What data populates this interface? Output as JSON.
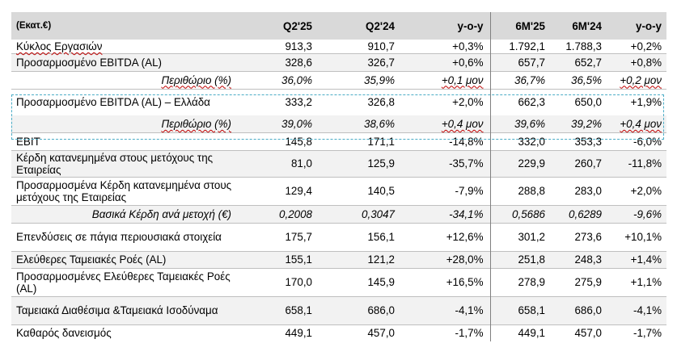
{
  "header": {
    "label": "(Εκατ.€)",
    "cols": [
      "Q2'25",
      "Q2'24",
      "y-o-y",
      "6M'25",
      "6M'24",
      "y-o-y"
    ]
  },
  "rows": [
    {
      "label": "Κύκλος Εργασιών",
      "values": [
        "913,3",
        "910,7",
        "+0,3%",
        "1.792,1",
        "1.788,3",
        "+0,2%"
      ]
    },
    {
      "label": "Προσαρμοσμένο EBITDA (AL)",
      "values": [
        "328,6",
        "326,7",
        "+0,6%",
        "657,7",
        "652,7",
        "+0,8%"
      ]
    },
    {
      "label": "Περιθώριο (%)",
      "values": [
        "36,0%",
        "35,9%",
        "+0,1 μον",
        "36,7%",
        "36,5%",
        "+0,2 μον"
      ]
    },
    {
      "label": "Προσαρμοσμένο EBITDA (AL) – Ελλάδα",
      "values": [
        "333,2",
        "326,8",
        "+2,0%",
        "662,3",
        "650,0",
        "+1,9%"
      ]
    },
    {
      "label": "Περιθώριο (%)",
      "values": [
        "39,0%",
        "38,6%",
        "+0,4 μον",
        "39,6%",
        "39,2%",
        "+0,4 μον"
      ]
    },
    {
      "label": "EBIT",
      "values": [
        "145,8",
        "171,1",
        "-14,8%",
        "332,0",
        "353,3",
        "-6,0%"
      ]
    },
    {
      "label": "Κέρδη κατανεμημένα στους μετόχους της Εταιρείας",
      "values": [
        "81,0",
        "125,9",
        "-35,7%",
        "229,9",
        "260,7",
        "-11,8%"
      ]
    },
    {
      "label": "Προσαρμοσμένα Κέρδη κατανεμημένα στους μετόχους της Εταιρείας",
      "values": [
        "129,4",
        "140,5",
        "-7,9%",
        "288,8",
        "283,0",
        "+2,0%"
      ]
    },
    {
      "label": "Βασικά Κέρδη ανά μετοχή (€)",
      "values": [
        "0,2008",
        "0,3047",
        "-34,1%",
        "0,5686",
        "0,6289",
        "-9,6%"
      ]
    },
    {
      "label": "Επενδύσεις σε πάγια περιουσιακά στοιχεία",
      "values": [
        "175,7",
        "156,1",
        "+12,6%",
        "301,2",
        "273,6",
        "+10,1%"
      ]
    },
    {
      "label": "Ελεύθερες Ταμειακές Ροές (AL)",
      "values": [
        "155,1",
        "121,2",
        "+28,0%",
        "251,8",
        "248,3",
        "+1,4%"
      ]
    },
    {
      "label": "Προσαρμοσμένες Ελεύθερες Ταμειακές Ροές (AL)",
      "values": [
        "170,0",
        "145,9",
        "+16,5%",
        "278,9",
        "275,9",
        "+1,1%"
      ]
    },
    {
      "label": "Ταμειακά Διαθέσιμα &Ταμειακά Ισοδύναμα",
      "values": [
        "658,1",
        "686,0",
        "-4,1%",
        "658,1",
        "686,0",
        "-4,1%"
      ]
    },
    {
      "label": "Καθαρός δανεισμός",
      "values": [
        "449,1",
        "457,0",
        "-1,7%",
        "449,1",
        "457,0",
        "-1,7%"
      ]
    }
  ]
}
